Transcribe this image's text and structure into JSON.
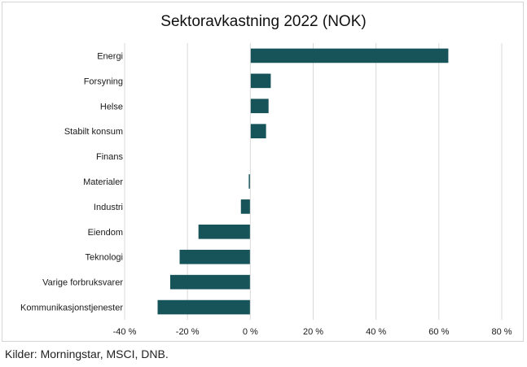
{
  "title": "Sektoravkastning 2022 (NOK)",
  "source": "Kilder: Morningstar, MSCI, DNB.",
  "colors": {
    "bar": "#16545a",
    "grid": "#d9d9d9",
    "text": "#1a1a1a"
  },
  "chart_data": {
    "type": "bar",
    "orientation": "horizontal",
    "title": "Sektoravkastning 2022 (NOK)",
    "xlabel": "",
    "ylabel": "",
    "xlim": [
      -40,
      80
    ],
    "xticks": [
      -40,
      -20,
      0,
      20,
      40,
      60,
      80
    ],
    "xtick_labels": [
      "-40 %",
      "-20 %",
      "0 %",
      "20 %",
      "40 %",
      "60 %",
      "80 %"
    ],
    "grid": true,
    "legend": "none",
    "categories": [
      "Energi",
      "Forsyning",
      "Helse",
      "Stabilt konsum",
      "Finans",
      "Materialer",
      "Industri",
      "Eiendom",
      "Teknologi",
      "Varige forbruksvarer",
      "Kommunikasjonstjenester"
    ],
    "values": [
      63.0,
      6.5,
      5.8,
      5.0,
      0.0,
      -0.5,
      -3.0,
      -16.5,
      -22.5,
      -25.5,
      -29.5
    ]
  }
}
